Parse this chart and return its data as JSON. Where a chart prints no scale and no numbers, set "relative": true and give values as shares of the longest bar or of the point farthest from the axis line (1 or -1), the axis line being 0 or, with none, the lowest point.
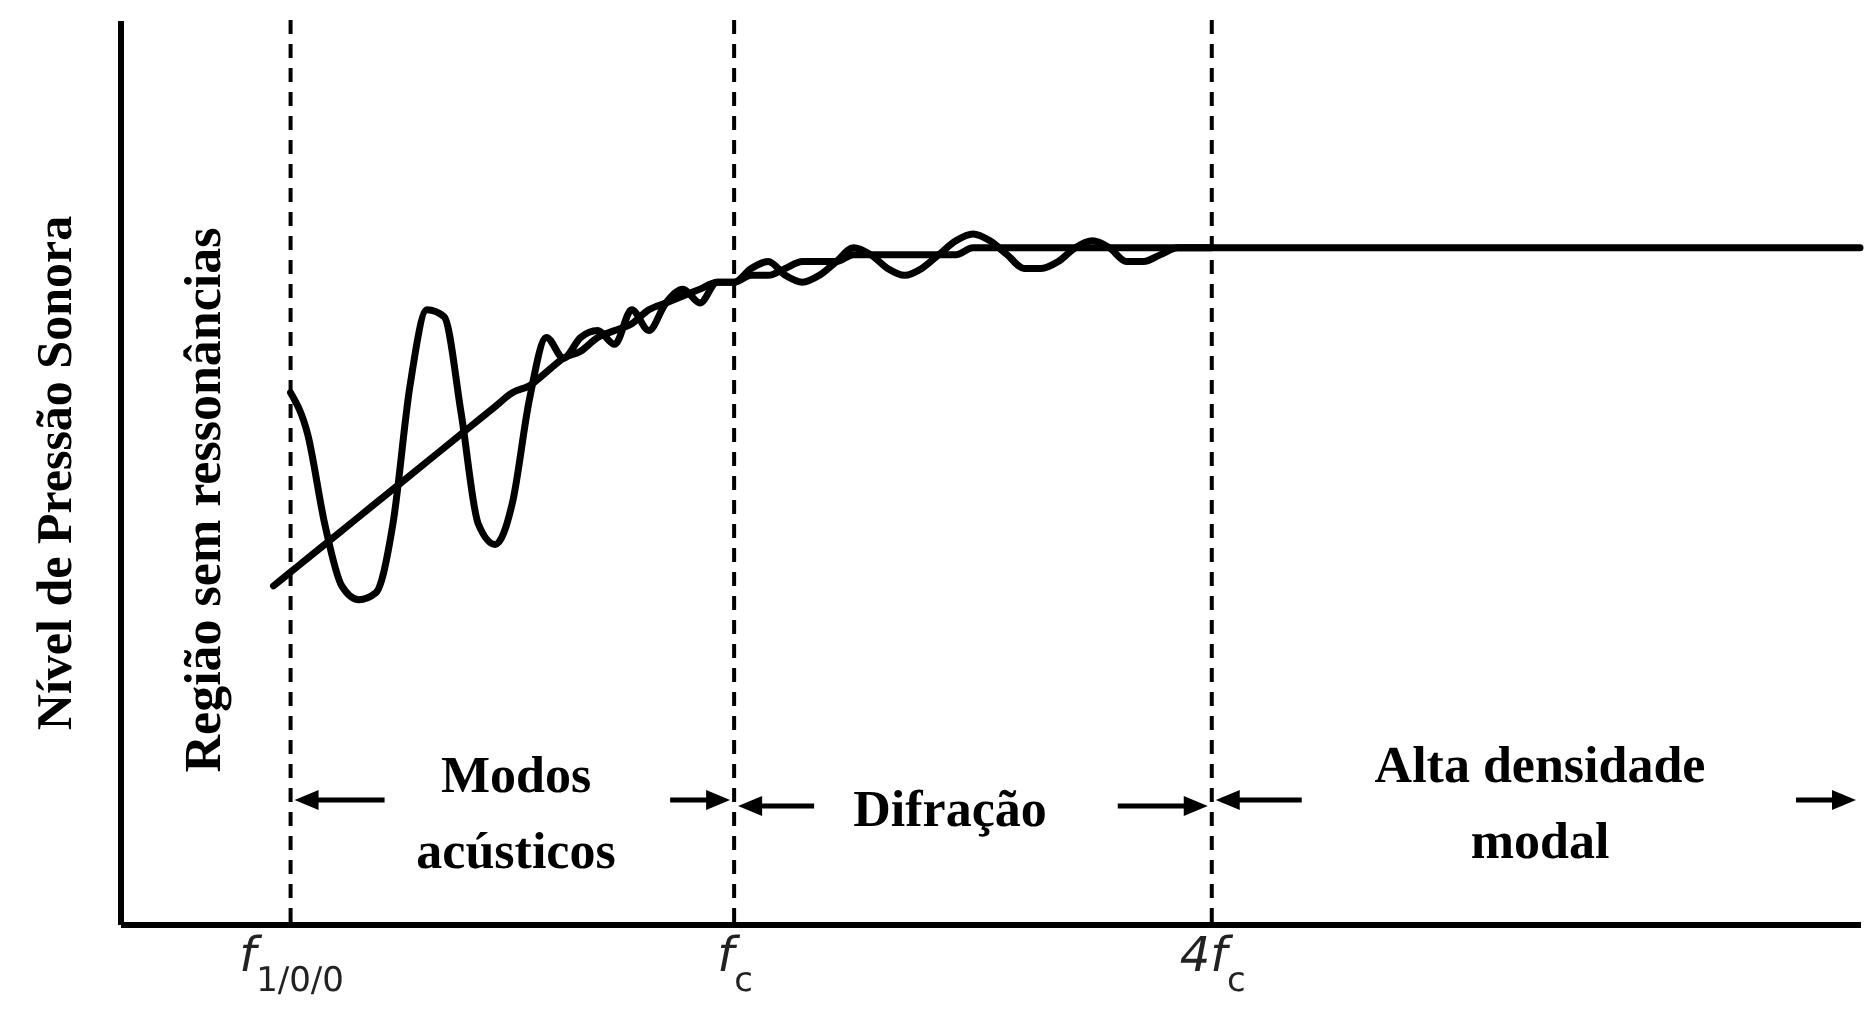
{
  "chart_data": {
    "type": "line",
    "relative": true,
    "ylabel": "Nível de Pressão Sonora",
    "categories": [
      null,
      null,
      null,
      null,
      null,
      null,
      null,
      null,
      null,
      null,
      "f$_{1/0/0}$",
      null,
      null,
      null,
      null,
      null,
      null,
      null,
      null,
      null,
      null,
      null,
      null,
      null,
      null,
      null,
      null,
      null,
      null,
      null,
      null,
      null,
      null,
      null,
      null,
      null,
      "f$_{c}$",
      null,
      null,
      null,
      null,
      null,
      null,
      null,
      null,
      null,
      null,
      null,
      null,
      null,
      null,
      null,
      null,
      null,
      null,
      null,
      null,
      null,
      null,
      null,
      null,
      null,
      null,
      null,
      "4f$_{c}$",
      null,
      null,
      null,
      null,
      null,
      null,
      null,
      null,
      null,
      null,
      null,
      null,
      null,
      null,
      null,
      null,
      null,
      null,
      null,
      null,
      null,
      null,
      null,
      null,
      null,
      null,
      null,
      null,
      null,
      null,
      null,
      null,
      null,
      null,
      null,
      null,
      null,
      null
    ],
    "series": [
      {
        "color": "#000000",
        "values": [
          null,
          null,
          null,
          null,
          null,
          null,
          null,
          null,
          null,
          0.49,
          0.51,
          0.53,
          0.55,
          0.57,
          0.59,
          0.61,
          0.63,
          0.65,
          0.67,
          0.69,
          0.71,
          0.73,
          0.75,
          0.77,
          0.78,
          0.8,
          0.82,
          0.83,
          0.85,
          0.86,
          0.87,
          0.89,
          0.9,
          0.91,
          0.92,
          0.93,
          0.93,
          0.94,
          0.94,
          0.95,
          0.96,
          0.96,
          0.96,
          0.97,
          0.97,
          0.97,
          0.97,
          0.97,
          0.97,
          0.97,
          0.98,
          0.98,
          0.98,
          0.98,
          0.98,
          0.98,
          0.98,
          0.98,
          0.98,
          0.98,
          0.98,
          0.98,
          0.98,
          0.98,
          0.98,
          0.98,
          0.98,
          0.98,
          0.98,
          0.98,
          0.98,
          0.98,
          0.98,
          0.98,
          0.98,
          0.98,
          0.98,
          0.98,
          0.98,
          0.98,
          0.98,
          0.98,
          0.98,
          0.98,
          0.98,
          0.98,
          0.98,
          0.98,
          0.98,
          0.98,
          0.98,
          0.98,
          0.98,
          0.98,
          0.98,
          0.98,
          0.98,
          0.98,
          0.98,
          0.98,
          0.98,
          0.98,
          0.98
        ]
      },
      {
        "color": "#000000",
        "values": [
          null,
          null,
          null,
          null,
          null,
          null,
          null,
          null,
          null,
          null,
          0.77,
          0.71,
          0.58,
          0.49,
          0.47,
          0.48,
          0.58,
          0.78,
          0.89,
          0.88,
          0.74,
          0.58,
          0.55,
          0.61,
          0.76,
          0.85,
          0.82,
          0.85,
          0.86,
          0.84,
          0.89,
          0.86,
          0.9,
          0.92,
          0.9,
          0.93,
          0.93,
          0.95,
          0.96,
          0.94,
          0.93,
          0.94,
          0.96,
          0.98,
          0.97,
          0.95,
          0.94,
          0.95,
          0.97,
          0.99,
          1.0,
          0.99,
          0.97,
          0.95,
          0.95,
          0.96,
          0.98,
          0.99,
          0.98,
          0.96,
          0.96,
          0.97,
          0.98,
          0.98,
          0.98,
          null,
          null,
          null,
          null,
          null,
          null,
          null,
          null,
          null,
          null,
          null,
          null,
          null,
          null,
          null,
          null,
          null,
          null,
          null,
          null,
          null,
          null,
          null,
          null,
          null,
          null,
          null,
          null,
          null,
          null,
          null,
          null,
          null,
          null,
          null,
          null,
          null,
          null
        ]
      }
    ],
    "ref_lines": [
      {
        "axis": "x",
        "value": "f$_{1/0/0}$",
        "line_style": "dashed"
      },
      {
        "axis": "x",
        "value": "f$_{c}$",
        "line_style": "dashed"
      },
      {
        "axis": "x",
        "value": "4f$_{c}$",
        "line_style": "dashed"
      }
    ],
    "annotations": [
      "Região sem ressonâncias",
      "Modos acústicos",
      "Difração",
      "Alta densidade modal"
    ],
    "marker": "none",
    "line_style": "solid"
  }
}
